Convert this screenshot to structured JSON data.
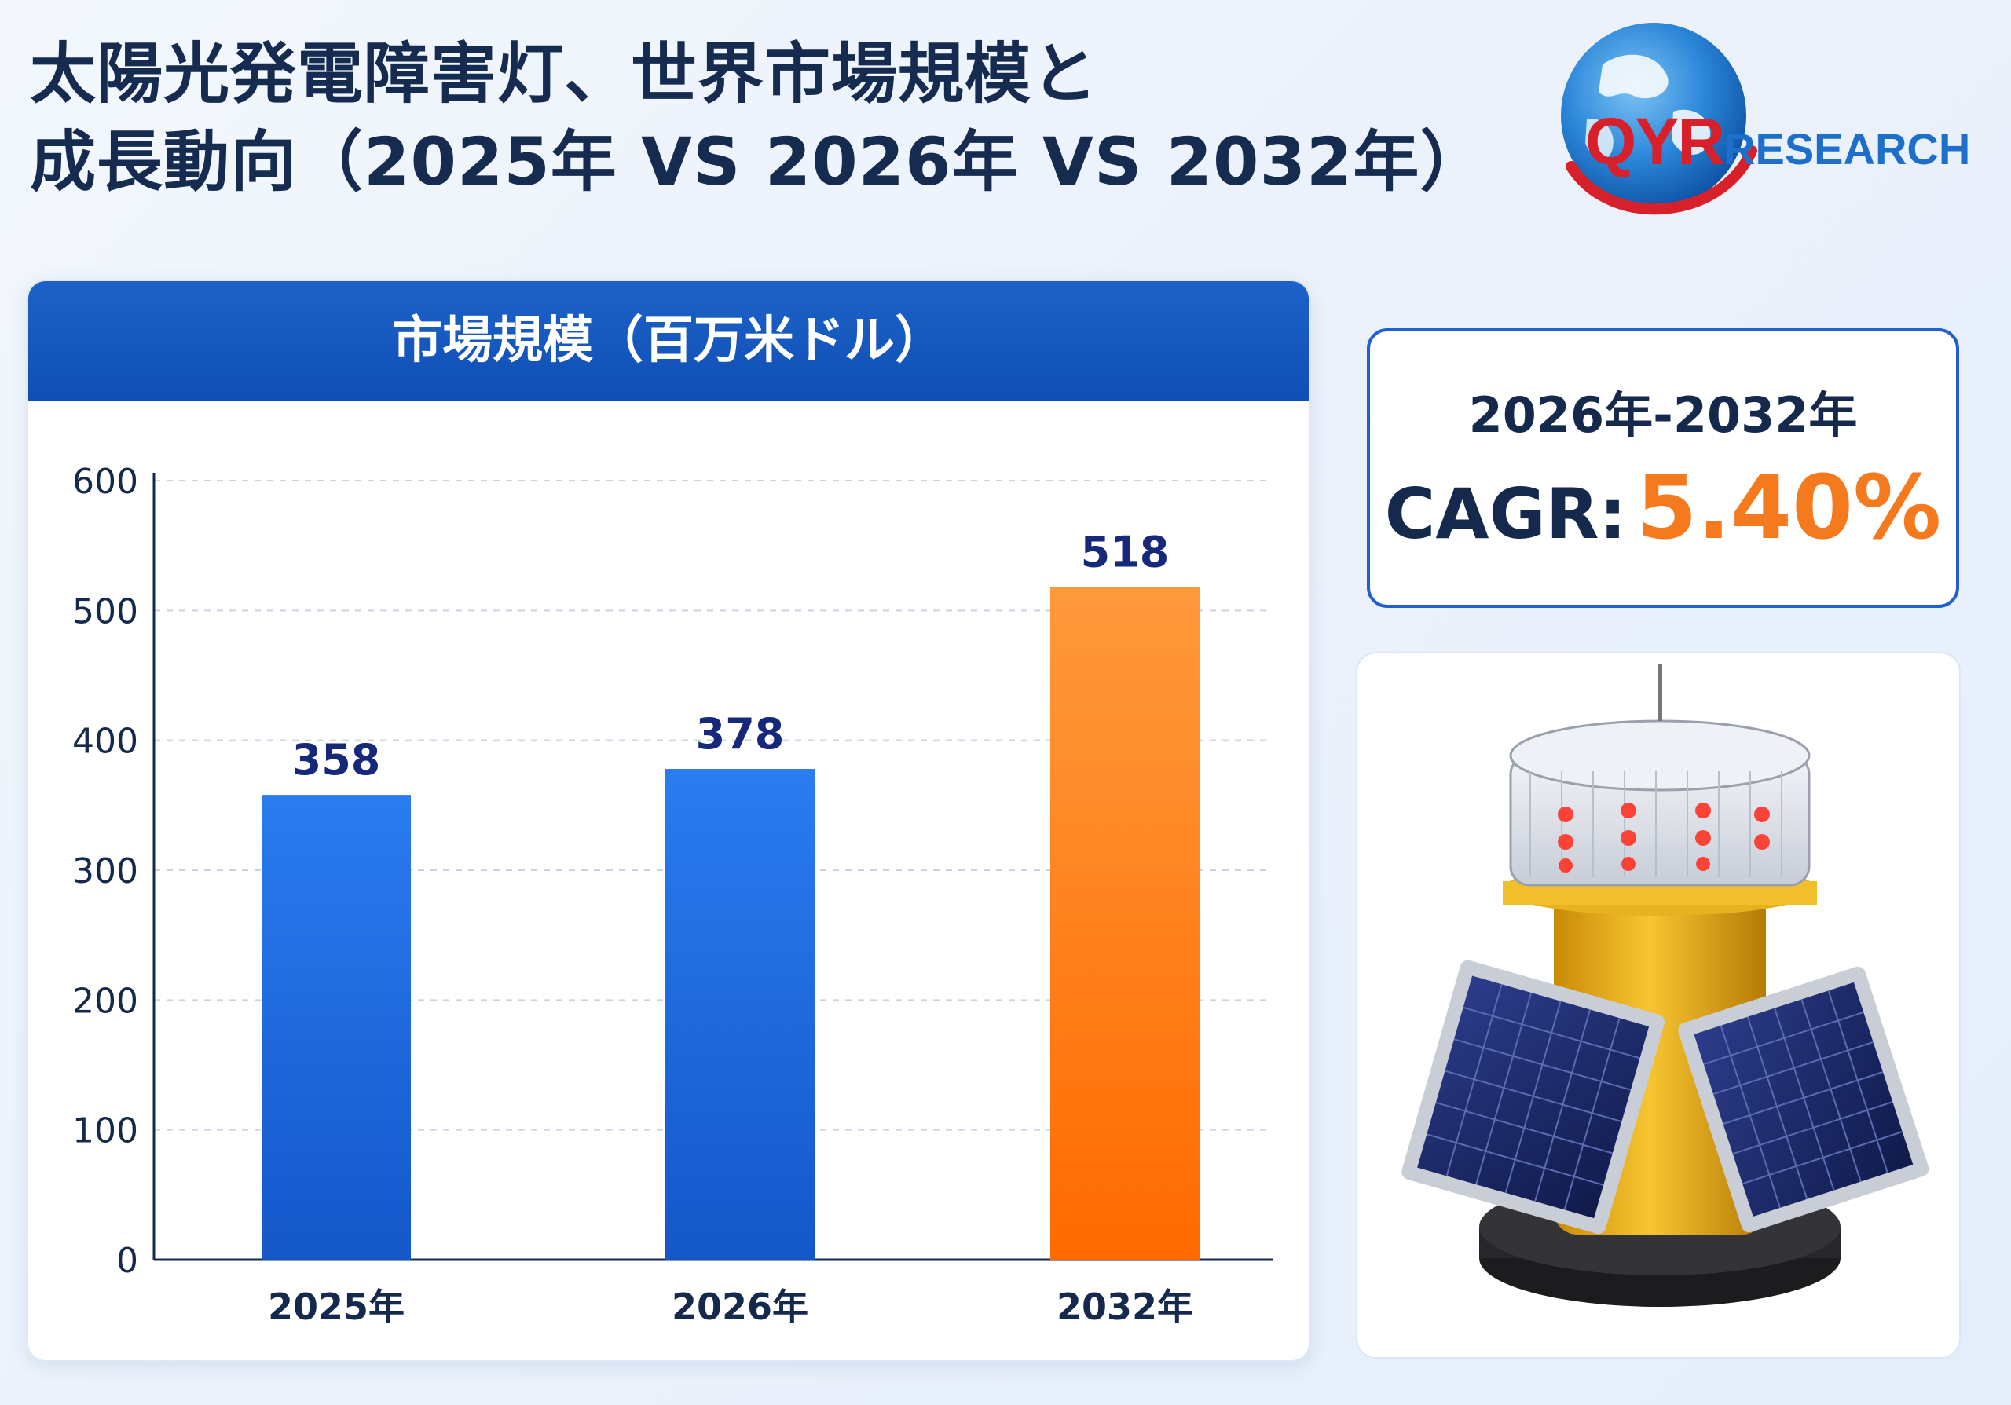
{
  "header": {
    "title_line1": "太陽光発電障害灯、世界市場規模と",
    "title_line2": "成長動向（2025年 VS 2026年 VS 2032年）"
  },
  "logo": {
    "brand_qyr": "QYR",
    "brand_research": "RESEARCH"
  },
  "chart_panel": {
    "heading": "市場規模（百万米ドル）"
  },
  "cagr": {
    "period": "2026年-2032年",
    "label": "CAGR:",
    "value": "5.40%"
  },
  "product_image": {
    "icon": "solar-obstruction-light-icon"
  },
  "colors": {
    "bar_blue": "#1f6fe0",
    "bar_orange": "#ff7a14",
    "header_blue": "#1258c0",
    "accent_orange": "#f47a1d",
    "text_navy": "#15294d"
  },
  "chart_data": {
    "type": "bar",
    "categories": [
      "2025年",
      "2026年",
      "2032年"
    ],
    "values": [
      358,
      378,
      518
    ],
    "value_labels": [
      "358",
      "378",
      "518"
    ],
    "bar_colors": [
      "#1f6fe0",
      "#1f6fe0",
      "#ff7a14"
    ],
    "ylim": [
      0,
      600
    ],
    "yticks": [
      0,
      100,
      200,
      300,
      400,
      500,
      600
    ],
    "grid": true,
    "title": "市場規模（百万米ドル）",
    "xlabel": "",
    "ylabel": ""
  }
}
